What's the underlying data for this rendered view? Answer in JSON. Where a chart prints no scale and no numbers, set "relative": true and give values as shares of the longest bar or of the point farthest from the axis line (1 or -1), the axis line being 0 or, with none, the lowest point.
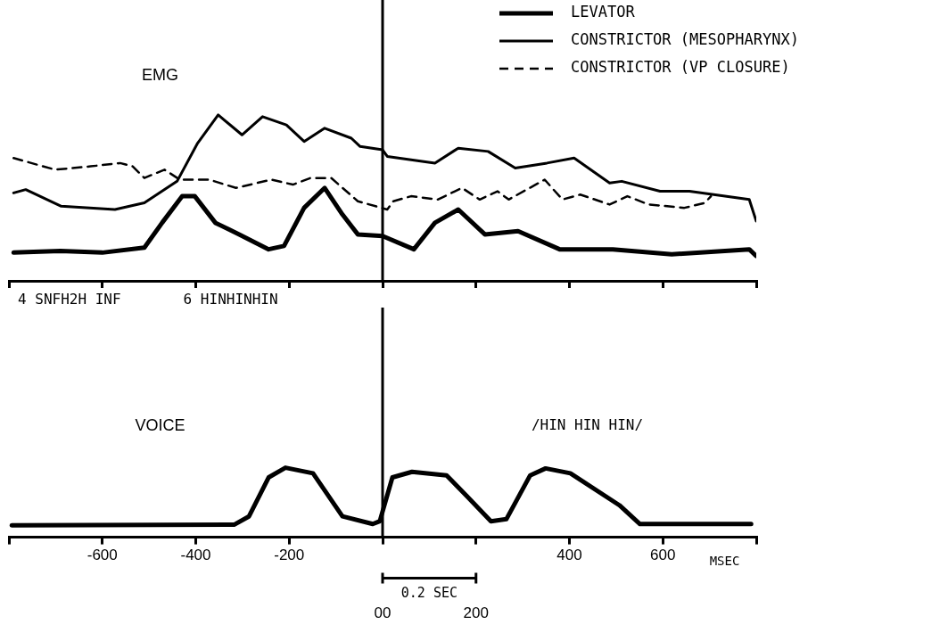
{
  "chart_data": [
    {
      "type": "line",
      "title": "EMG",
      "relative": true,
      "grid": false,
      "legend": "top right",
      "marker": "none",
      "tick_labels": false,
      "xlim": [
        -800,
        800
      ],
      "xticks": [
        {
          "value": -800,
          "label": null
        },
        {
          "value": -600,
          "label": null
        },
        {
          "value": -400,
          "label": null
        },
        {
          "value": -200,
          "label": null
        },
        {
          "value": 0,
          "label": null
        },
        {
          "value": 200,
          "label": null
        },
        {
          "value": 400,
          "label": null
        },
        {
          "value": 600,
          "label": null
        },
        {
          "value": 800,
          "label": null
        }
      ],
      "ref_lines": [
        {
          "axis": "x",
          "value": 0,
          "color": "#000000"
        }
      ],
      "annotations": [
        "4 SNFH2H INF",
        "6 HINHINHIN"
      ],
      "series": [
        {
          "name": "LEVATOR",
          "color": "#000000",
          "line_style": "solid",
          "x": [
            -790,
            -690,
            -600,
            -510,
            -472,
            -429,
            -402,
            -358,
            -307,
            -244,
            -211,
            -168,
            -124,
            -86,
            -53,
            0,
            67,
            112,
            162,
            219,
            290,
            379,
            493,
            619,
            785,
            800
          ],
          "values": [
            0.17,
            0.18,
            0.17,
            0.2,
            0.35,
            0.51,
            0.51,
            0.35,
            0.28,
            0.19,
            0.21,
            0.44,
            0.56,
            0.4,
            0.28,
            0.27,
            0.19,
            0.35,
            0.43,
            0.28,
            0.3,
            0.19,
            0.19,
            0.16,
            0.19,
            0.15
          ]
        },
        {
          "name": "CONSTRICTOR (MESOPHARYNX)",
          "color": "#000000",
          "line_style": "solid",
          "x": [
            -790,
            -764,
            -688,
            -573,
            -510,
            -440,
            -396,
            -352,
            -301,
            -257,
            -206,
            -168,
            -124,
            -67,
            -48,
            0,
            10,
            112,
            162,
            226,
            284,
            352,
            410,
            486,
            512,
            594,
            657,
            785,
            800
          ],
          "values": [
            0.53,
            0.55,
            0.45,
            0.43,
            0.47,
            0.6,
            0.83,
            1,
            0.88,
            0.99,
            0.94,
            0.84,
            0.92,
            0.86,
            0.81,
            0.79,
            0.75,
            0.71,
            0.8,
            0.78,
            0.68,
            0.71,
            0.74,
            0.59,
            0.6,
            0.54,
            0.54,
            0.49,
            0.36
          ]
        },
        {
          "name": "CONSTRICTOR (VP CLOSURE)",
          "color": "#000000",
          "line_style": "dashed",
          "x": [
            -790,
            -701,
            -625,
            -562,
            -535,
            -510,
            -467,
            -434,
            -371,
            -314,
            -238,
            -192,
            -154,
            -110,
            -53,
            10,
            23,
            61,
            118,
            170,
            208,
            246,
            270,
            347,
            385,
            423,
            486,
            524,
            570,
            646,
            690,
            703
          ],
          "values": [
            0.74,
            0.67,
            0.69,
            0.71,
            0.69,
            0.62,
            0.67,
            0.61,
            0.61,
            0.56,
            0.61,
            0.58,
            0.62,
            0.62,
            0.48,
            0.43,
            0.48,
            0.51,
            0.49,
            0.56,
            0.49,
            0.54,
            0.49,
            0.61,
            0.49,
            0.52,
            0.46,
            0.51,
            0.46,
            0.44,
            0.47,
            0.51
          ]
        }
      ]
    },
    {
      "type": "line",
      "title": "VOICE",
      "xlabel": "MSEC",
      "relative": true,
      "grid": false,
      "marker": "none",
      "tick_labels": "x",
      "xlim": [
        -800,
        800
      ],
      "xticks": [
        {
          "value": -800,
          "label": null
        },
        -600,
        -400,
        -200,
        {
          "value": 0,
          "label": null
        },
        {
          "value": 200,
          "label": null
        },
        400,
        600,
        {
          "value": 800,
          "label": null
        }
      ],
      "ref_lines": [
        {
          "axis": "x",
          "value": 0,
          "color": "#000000"
        }
      ],
      "annotations": [
        "/HIN HIN HIN/",
        "0.2 SEC",
        "00",
        "200"
      ],
      "series": [
        {
          "color": "#000000",
          "line_style": "solid",
          "x": [
            -794,
            -318,
            -286,
            -244,
            -208,
            -149,
            -86,
            -21,
            -6,
            21,
            63,
            137,
            179,
            232,
            265,
            316,
            349,
            402,
            507,
            551,
            789
          ],
          "values": [
            0.17,
            0.18,
            0.3,
            0.86,
            1,
            0.92,
            0.3,
            0.19,
            0.23,
            0.86,
            0.94,
            0.89,
            0.6,
            0.23,
            0.26,
            0.89,
            0.99,
            0.92,
            0.46,
            0.19,
            0.19
          ]
        }
      ]
    }
  ]
}
